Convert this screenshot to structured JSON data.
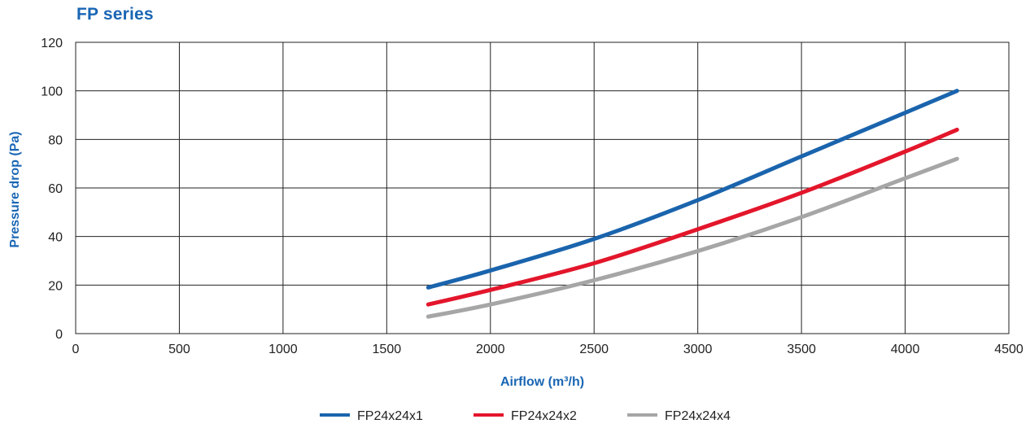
{
  "chart_data": {
    "type": "line",
    "title": "FP series",
    "xlabel": "Airflow (m³/h)",
    "ylabel": "Pressure drop (Pa)",
    "xlim": [
      0,
      4500
    ],
    "ylim": [
      0,
      120
    ],
    "xticks": [
      0,
      500,
      1000,
      1500,
      2000,
      2500,
      3000,
      3500,
      4000,
      4500
    ],
    "yticks": [
      0,
      20,
      40,
      60,
      80,
      100,
      120
    ],
    "grid": true,
    "legend_position": "bottom",
    "series": [
      {
        "name": "FP24x24x1",
        "color": "#1a64ad",
        "x": [
          1700,
          2000,
          2500,
          3000,
          3500,
          4000,
          4250
        ],
        "y": [
          19,
          26,
          39,
          55,
          73,
          91,
          100
        ]
      },
      {
        "name": "FP24x24x2",
        "color": "#e3162b",
        "x": [
          1700,
          2000,
          2500,
          3000,
          3500,
          4000,
          4250
        ],
        "y": [
          12,
          18,
          29,
          43,
          58,
          75,
          84
        ]
      },
      {
        "name": "FP24x24x4",
        "color": "#a6a6a6",
        "x": [
          1700,
          2000,
          2500,
          3000,
          3500,
          4000,
          4250
        ],
        "y": [
          7,
          12,
          22,
          34,
          48,
          64,
          72
        ]
      }
    ]
  }
}
